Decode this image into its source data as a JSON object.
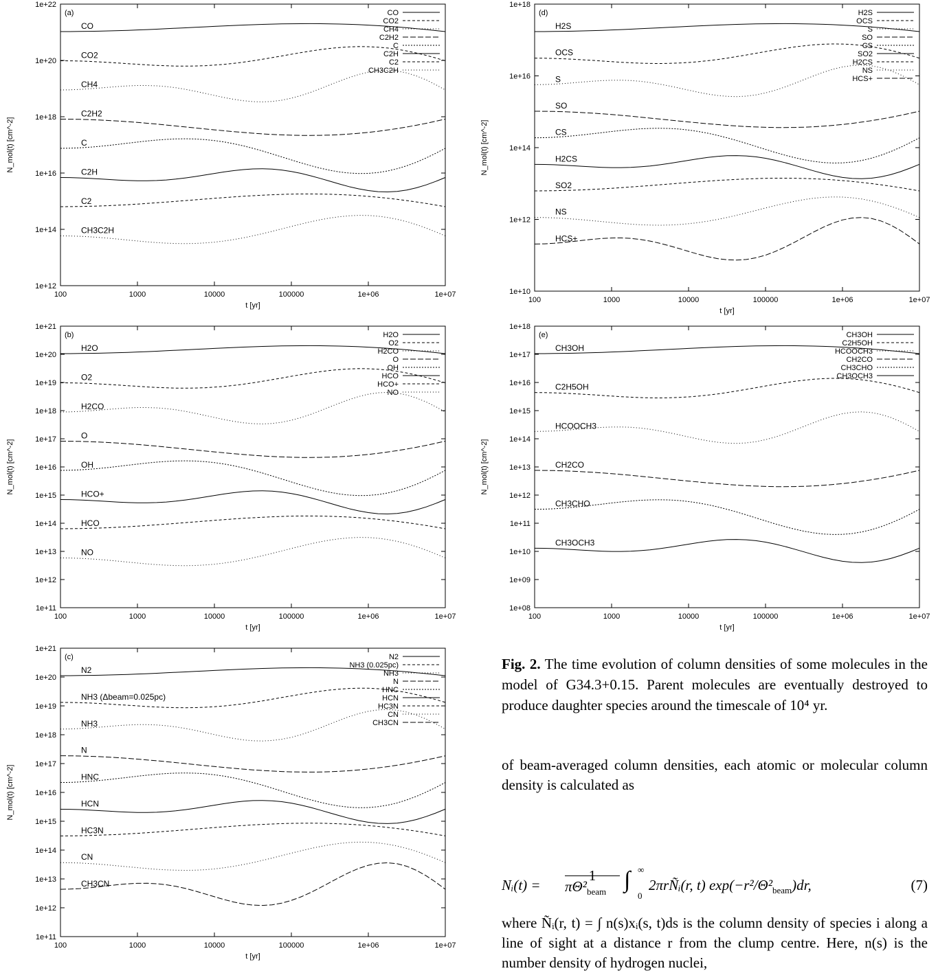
{
  "panels": [
    {
      "id": "a",
      "label": "(a)",
      "ylabel": "N_mol(t) [cm^-2]",
      "xlabel": "t [yr]",
      "yticks": [
        "1e+12",
        "1e+14",
        "1e+16",
        "1e+18",
        "1e+20",
        "1e+22"
      ],
      "xticks": [
        "100",
        "1000",
        "10000",
        "100000",
        "1e+06",
        "1e+07"
      ],
      "legend": [
        "CO",
        "CO2",
        "CH4",
        "C2H2",
        "C",
        "C2H",
        "C2",
        "CH3C2H"
      ],
      "curve_labels": [
        "CO",
        "CO2",
        "CH4",
        "C2H2",
        "C",
        "C2H",
        "C2",
        "CH3C2H"
      ]
    },
    {
      "id": "b",
      "label": "(b)",
      "ylabel": "N_mol(t) [cm^-2]",
      "xlabel": "t [yr]",
      "yticks": [
        "1e+11",
        "1e+12",
        "1e+13",
        "1e+14",
        "1e+15",
        "1e+16",
        "1e+17",
        "1e+18",
        "1e+19",
        "1e+20",
        "1e+21"
      ],
      "xticks": [
        "100",
        "1000",
        "10000",
        "100000",
        "1e+06",
        "1e+07"
      ],
      "legend": [
        "H2O",
        "O2",
        "H2CO",
        "O",
        "OH",
        "HCO",
        "HCO+",
        "NO"
      ],
      "curve_labels": [
        "H2O",
        "O2",
        "H2CO",
        "O",
        "OH",
        "HCO+",
        "HCO",
        "NO"
      ]
    },
    {
      "id": "c",
      "label": "(c)",
      "ylabel": "N_mol(t) [cm^-2]",
      "xlabel": "t [yr]",
      "yticks": [
        "1e+11",
        "1e+12",
        "1e+13",
        "1e+14",
        "1e+15",
        "1e+16",
        "1e+17",
        "1e+18",
        "1e+19",
        "1e+20",
        "1e+21"
      ],
      "xticks": [
        "100",
        "1000",
        "10000",
        "100000",
        "1e+06",
        "1e+07"
      ],
      "legend": [
        "N2",
        "NH3 (0.025pc)",
        "NH3",
        "N",
        "HNC",
        "HCN",
        "HC3N",
        "CN",
        "CH3CN"
      ],
      "curve_labels": [
        "N2",
        "NH3 (Δbeam=0.025pc)",
        "NH3",
        "N",
        "HNC",
        "HCN",
        "HC3N",
        "CN",
        "CH3CN"
      ]
    },
    {
      "id": "d",
      "label": "(d)",
      "ylabel": "N_mol(t) [cm^-2]",
      "xlabel": "t [yr]",
      "yticks": [
        "1e+10",
        "1e+12",
        "1e+14",
        "1e+16",
        "1e+18"
      ],
      "xticks": [
        "100",
        "1000",
        "10000",
        "100000",
        "1e+06",
        "1e+07"
      ],
      "legend": [
        "H2S",
        "OCS",
        "S",
        "SO",
        "CS",
        "SO2",
        "H2CS",
        "NS",
        "HCS+"
      ],
      "curve_labels": [
        "H2S",
        "OCS",
        "S",
        "SO",
        "CS",
        "H2CS",
        "SO2",
        "NS",
        "HCS+"
      ]
    },
    {
      "id": "e",
      "label": "(e)",
      "ylabel": "N_mol(t) [cm^-2]",
      "xlabel": "t [yr]",
      "yticks": [
        "1e+08",
        "1e+09",
        "1e+10",
        "1e+11",
        "1e+12",
        "1e+13",
        "1e+14",
        "1e+15",
        "1e+16",
        "1e+17",
        "1e+18"
      ],
      "xticks": [
        "100",
        "1000",
        "10000",
        "100000",
        "1e+06",
        "1e+07"
      ],
      "legend": [
        "CH3OH",
        "C2H5OH",
        "HCOOCH3",
        "CH2CO",
        "CH3CHO",
        "CH3OCH3"
      ],
      "curve_labels": [
        "CH3OH",
        "C2H5OH",
        "HCOOCH3",
        "CH2CO",
        "CH3CHO",
        "CH3OCH3"
      ]
    }
  ],
  "caption": {
    "label": "Fig. 2.",
    "text": "The time evolution of column densities of some molecules in the model of G34.3+0.15. Parent molecules are eventually destroyed to produce daughter species around the timescale of 10⁴ yr."
  },
  "body": {
    "para1": "of beam-averaged column densities, each atomic or molecular column density is calculated as",
    "equation_number": "(7)",
    "para2": "where Ñᵢ(r, t) = ∫ n(s)xᵢ(s, t)ds is the column density of species i along a line of sight at a distance r from the clump centre. Here, n(s) is the number density of hydrogen nuclei,"
  }
}
